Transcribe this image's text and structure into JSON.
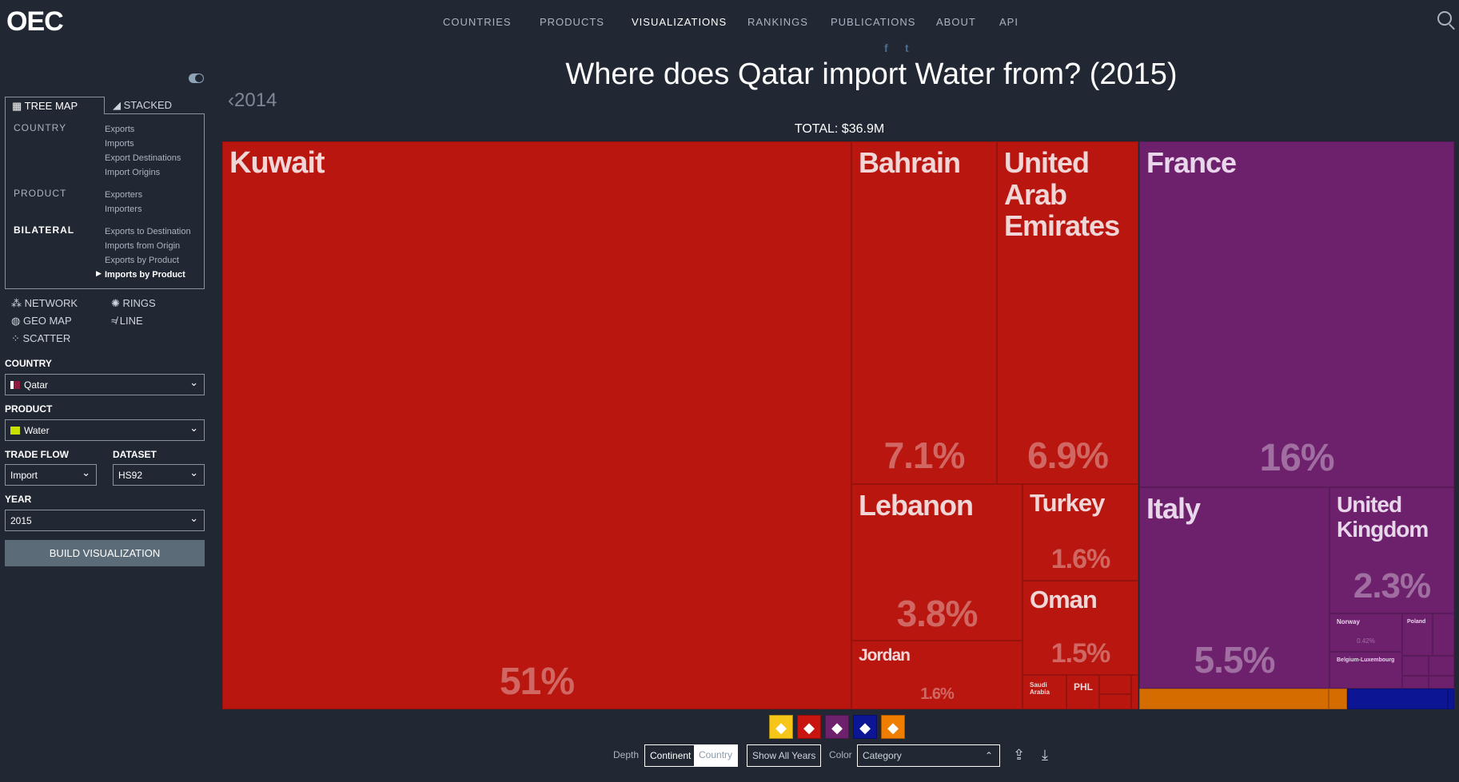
{
  "header": {
    "logo": "OEC",
    "nav": [
      "COUNTRIES",
      "PRODUCTS",
      "VISUALIZATIONS",
      "RANKINGS",
      "PUBLICATIONS",
      "ABOUT",
      "API"
    ],
    "social": [
      "f",
      "t"
    ]
  },
  "title": "Where does Qatar import Water from? (2015)",
  "prev_year": "2014",
  "total": "TOTAL: $36.9M",
  "sidebar": {
    "tabs": [
      "TREE MAP",
      "STACKED"
    ],
    "sections": [
      {
        "label": "COUNTRY",
        "links": [
          "Exports",
          "Imports",
          "Export Destinations",
          "Import Origins"
        ]
      },
      {
        "label": "PRODUCT",
        "links": [
          "Exporters",
          "Importers"
        ]
      },
      {
        "label": "BILATERAL",
        "links": [
          "Exports to Destination",
          "Imports from Origin",
          "Exports by Product",
          "Imports by Product"
        ]
      }
    ],
    "viz_types": [
      "NETWORK",
      "RINGS",
      "GEO MAP",
      "LINE",
      "SCATTER"
    ],
    "country_label": "COUNTRY",
    "country": "Qatar",
    "product_label": "PRODUCT",
    "product": "Water",
    "trade_flow_label": "TRADE FLOW",
    "trade_flow": "Import",
    "dataset_label": "DATASET",
    "dataset": "HS92",
    "year_label": "YEAR",
    "year": "2015",
    "build": "BUILD VISUALIZATION"
  },
  "treemap": {
    "cells": [
      {
        "name": "Kuwait",
        "share": "51%"
      },
      {
        "name": "Bahrain",
        "share": "7.1%"
      },
      {
        "name": "United Arab Emirates",
        "share": "6.9%"
      },
      {
        "name": "Lebanon",
        "share": "3.8%"
      },
      {
        "name": "Jordan",
        "share": "1.6%"
      },
      {
        "name": "Turkey",
        "share": "1.6%"
      },
      {
        "name": "Oman",
        "share": "1.5%"
      },
      {
        "name": "Saudi Arabia"
      },
      {
        "name": "PHL"
      },
      {
        "name": "France",
        "share": "16%"
      },
      {
        "name": "Italy",
        "share": "5.5%"
      },
      {
        "name": "United Kingdom",
        "share": "2.3%"
      },
      {
        "name": "Norway",
        "share": "0.42%"
      },
      {
        "name": "Poland"
      },
      {
        "name": "Belgium-Luxembourg"
      }
    ]
  },
  "colors": {
    "asia": "#b8160f",
    "europe": "#6d216d",
    "africa": "#f5c518",
    "north_america": "#0c1594",
    "oceania": "#d46c00"
  },
  "controls": {
    "depth_label": "Depth",
    "depth_options": [
      "Continent",
      "Country"
    ],
    "show_all_years": "Show All Years",
    "color_label": "Color",
    "color_value": "Category"
  }
}
